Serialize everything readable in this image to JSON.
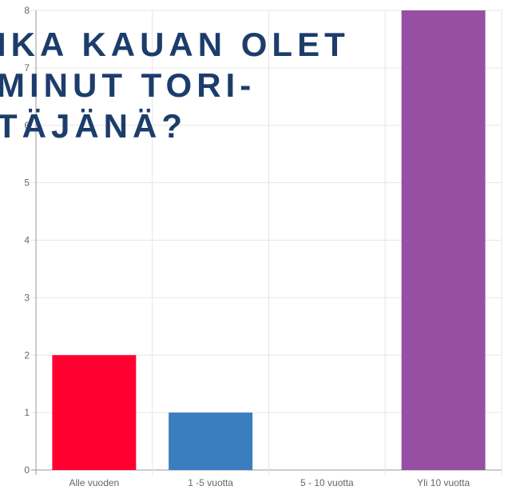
{
  "chart_data": {
    "type": "bar",
    "title_lines": [
      "IKA KAUAN OLET",
      "MINUT TORI-",
      "TÄJÄNÄ?"
    ],
    "categories": [
      "Alle vuoden",
      "1 -5 vuotta",
      "5 - 10 vuotta",
      "Yli 10 vuotta"
    ],
    "values": [
      2,
      1,
      0,
      8
    ],
    "colors": [
      "#ff0030",
      "#3a7ebf",
      "#4bc0c0",
      "#974fa3"
    ],
    "ylim": [
      0,
      8
    ],
    "yticks": [
      0,
      1,
      2,
      3,
      4,
      5,
      6,
      7,
      8
    ],
    "grid": true
  }
}
